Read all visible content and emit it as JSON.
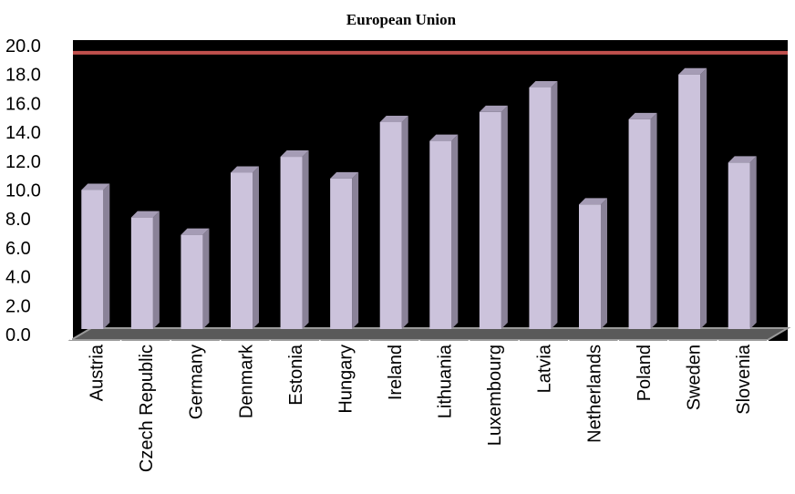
{
  "chart_data": {
    "type": "bar",
    "title": "European Union",
    "categories": [
      "Austria",
      "Czech Republic",
      "Germany",
      "Denmark",
      "Estonia",
      "Hungary",
      "Ireland",
      "Lithuania",
      "Luxembourg",
      "Latvia",
      "Netherlands",
      "Poland",
      "Sweden",
      "Slovenia"
    ],
    "series": [
      {
        "values": [
          10.0,
          8.1,
          6.9,
          11.2,
          12.3,
          10.8,
          14.7,
          13.4,
          15.4,
          17.1,
          9.0,
          14.9,
          18.0,
          11.9
        ]
      }
    ],
    "reference_line": {
      "value": 19.0
    },
    "ylim": [
      0,
      20
    ],
    "yticks": [
      "0.0",
      "2.0",
      "4.0",
      "6.0",
      "8.0",
      "10.0",
      "12.0",
      "14.0",
      "16.0",
      "18.0",
      "20.0"
    ],
    "xlabel": "",
    "ylabel": "",
    "grid": false,
    "legend": "none",
    "colors": {
      "bar_front": "#ccc3dc",
      "bar_side": "#8a8298",
      "bar_top": "#a59cb5",
      "reference_line": "#c0504d",
      "background": "#000000",
      "floor": "#5a5a5a"
    }
  }
}
